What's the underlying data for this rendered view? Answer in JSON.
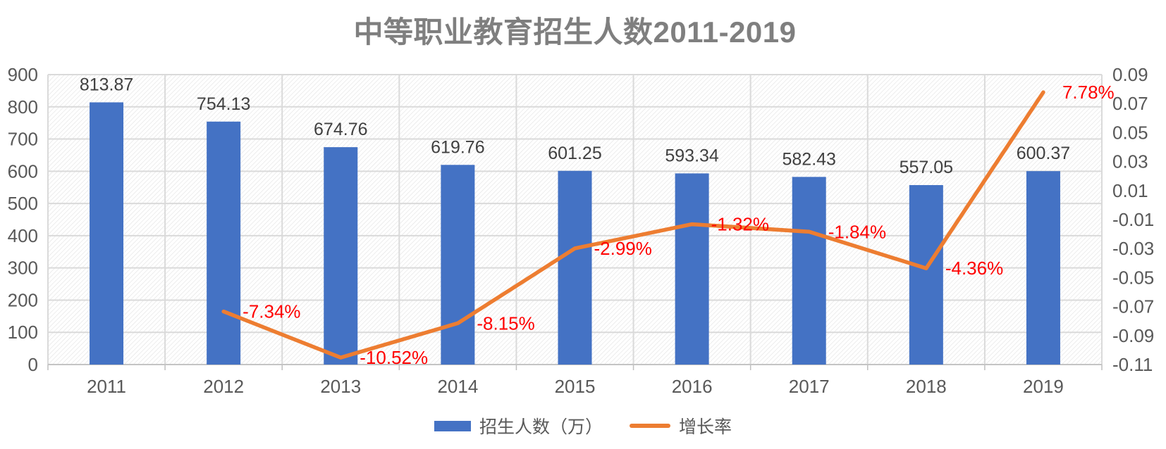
{
  "chart_data": {
    "type": "bar",
    "subtype": "combo-bar-line",
    "title": "中等职业教育招生人数2011-2019",
    "categories": [
      "2011",
      "2012",
      "2013",
      "2014",
      "2015",
      "2016",
      "2017",
      "2018",
      "2019"
    ],
    "series": [
      {
        "name": "招生人数（万）",
        "type": "bar",
        "axis": "left",
        "color": "#4472C4",
        "values": [
          813.87,
          754.13,
          674.76,
          619.76,
          601.25,
          593.34,
          582.43,
          557.05,
          600.37
        ],
        "labels": [
          "813.87",
          "754.13",
          "674.76",
          "619.76",
          "601.25",
          "593.34",
          "582.43",
          "557.05",
          "600.37"
        ]
      },
      {
        "name": "增长率",
        "type": "line",
        "axis": "right",
        "color": "#ED7D31",
        "label_color": "#FF0000",
        "values": [
          null,
          -0.0734,
          -0.1052,
          -0.0815,
          -0.0299,
          -0.0132,
          -0.0184,
          -0.0436,
          0.0778
        ],
        "labels": [
          null,
          "-7.34%",
          "-10.52%",
          "-8.15%",
          "-2.99%",
          "-1.32%",
          "-1.84%",
          "-4.36%",
          "7.78%"
        ]
      }
    ],
    "left_axis": {
      "min": 0,
      "max": 900,
      "step": 100,
      "ticks": [
        "0",
        "100",
        "200",
        "300",
        "400",
        "500",
        "600",
        "700",
        "800",
        "900"
      ]
    },
    "right_axis": {
      "min": -0.11,
      "max": 0.09,
      "step": 0.02,
      "ticks": [
        "0.09",
        "0.07",
        "0.05",
        "0.03",
        "0.01",
        "-0.01",
        "-0.03",
        "-0.05",
        "-0.07",
        "-0.09",
        "-0.11"
      ]
    },
    "legend": [
      {
        "label": "招生人数（万）",
        "swatch": "bar",
        "color": "#4472C4"
      },
      {
        "label": "增长率",
        "swatch": "line",
        "color": "#ED7D31"
      }
    ],
    "grid": true,
    "legend_position": "bottom",
    "colors": {
      "bar_label": "#404040",
      "axis_label": "#595959",
      "title": "#7f7f7f",
      "gridline": "#dadada",
      "axis_line": "#c4c4c4",
      "tick_mark": "#bfbfbf",
      "hatch_line": "#e4e4e4"
    }
  }
}
